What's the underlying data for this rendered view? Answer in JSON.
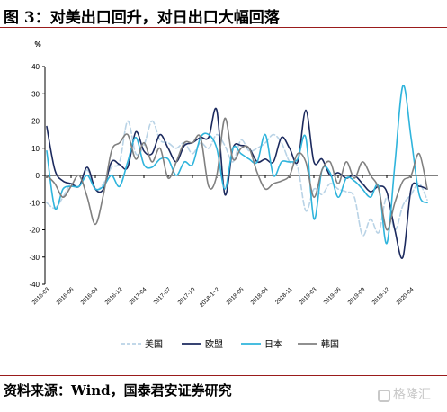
{
  "header": {
    "title": "图 3：对美出口回升，对日出口大幅回落"
  },
  "footer": {
    "source": "资料来源：Wind，国泰君安证券研究",
    "watermark": "格隆汇"
  },
  "chart_data": {
    "type": "line",
    "title": "",
    "ylabel": "%",
    "ylim": [
      -40,
      40
    ],
    "yticks": [
      40,
      30,
      20,
      10,
      0,
      -10,
      -20,
      -30,
      -40
    ],
    "legend_position": "bottom",
    "grid": false,
    "x_tick_labels": [
      "2016-03",
      "2016-06",
      "2016-09",
      "2016-12",
      "2017-04",
      "2017-07",
      "2017-10",
      "2018-1~2",
      "2018-05",
      "2018-08",
      "2018-11",
      "2019-03",
      "2019-06",
      "2019-09",
      "2019-12",
      "2020-04"
    ],
    "x": [
      "2016-03",
      "2016-04",
      "2016-05",
      "2016-06",
      "2016-07",
      "2016-08",
      "2016-09",
      "2016-10",
      "2016-11",
      "2016-12",
      "2017-1~2",
      "2017-03",
      "2017-04",
      "2017-05",
      "2017-06",
      "2017-07",
      "2017-08",
      "2017-09",
      "2017-10",
      "2017-11",
      "2017-12",
      "2018-1~2",
      "2018-03",
      "2018-04",
      "2018-05",
      "2018-06",
      "2018-07",
      "2018-08",
      "2018-09",
      "2018-10",
      "2018-11",
      "2018-12",
      "2019-1~2",
      "2019-03",
      "2019-04",
      "2019-05",
      "2019-06",
      "2019-07",
      "2019-08",
      "2019-09",
      "2019-10",
      "2019-11",
      "2019-12",
      "2020-1~2",
      "2020-03",
      "2020-04",
      "2020-05",
      "2020-06"
    ],
    "series": [
      {
        "name": "美国",
        "color": "#b9d3e6",
        "dash": "6,3",
        "values": [
          -10,
          -12,
          -8,
          -3,
          -4,
          2,
          -5,
          -3,
          3,
          5,
          20,
          8,
          11,
          20,
          13,
          12,
          10,
          12,
          8,
          12,
          10,
          15,
          11,
          5,
          13,
          9,
          10,
          12,
          15,
          12,
          5,
          3,
          -13,
          -5,
          -7,
          -3,
          -5,
          -6,
          -8,
          -22,
          -16,
          -21,
          -8,
          -20,
          -11,
          -7,
          -3,
          -9
        ]
      },
      {
        "name": "欧盟",
        "color": "#1c2a5e",
        "dash": "",
        "values": [
          18,
          2,
          -2,
          -3,
          -4,
          3,
          -5,
          -5,
          5,
          4,
          3,
          16,
          9,
          8,
          15,
          10,
          5,
          11,
          12,
          14,
          14,
          24,
          -7,
          10,
          11,
          10,
          5,
          6,
          5,
          14,
          10,
          5,
          24,
          5,
          6,
          0,
          1,
          -1,
          0,
          -3,
          -6,
          -4,
          -6,
          -20,
          -30,
          -5,
          -4,
          -5
        ]
      },
      {
        "name": "日本",
        "color": "#2fb4dc",
        "dash": "",
        "values": [
          9,
          -12,
          -5,
          -4,
          -4,
          0,
          -5,
          -4,
          0,
          -4,
          5,
          14,
          4,
          3,
          6,
          6,
          0,
          5,
          4,
          14,
          15,
          10,
          -5,
          10,
          8,
          6,
          5,
          15,
          0,
          5,
          5,
          6,
          14,
          -16,
          2,
          1,
          -8,
          -1,
          -2,
          -5,
          -8,
          -4,
          -25,
          4,
          33,
          14,
          -7,
          -10
        ]
      },
      {
        "name": "韩国",
        "color": "#808080",
        "dash": "",
        "values": [
          0,
          -3,
          -8,
          -4,
          0,
          -8,
          -18,
          -7,
          9,
          12,
          15,
          6,
          12,
          5,
          10,
          -1,
          5,
          12,
          12,
          14,
          -4,
          0,
          21,
          6,
          10,
          10,
          1,
          -5,
          -3,
          -2,
          0,
          8,
          5,
          -8,
          2,
          5,
          -3,
          5,
          -1,
          5,
          0,
          -5,
          -20,
          -10,
          -2,
          0,
          8,
          -5
        ]
      }
    ]
  }
}
